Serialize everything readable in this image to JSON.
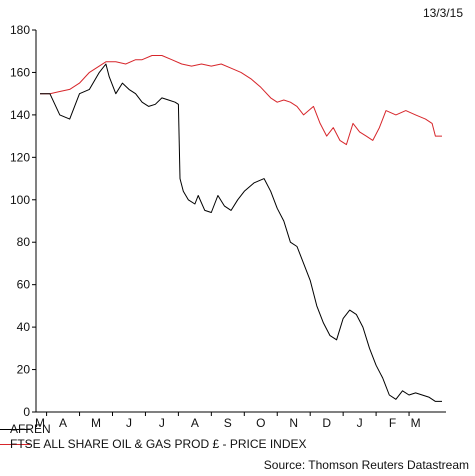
{
  "date": "13/3/15",
  "source": "Source: Thomson Reuters Datastream",
  "chart_data": {
    "type": "line",
    "title": "",
    "xlabel": "",
    "ylabel": "",
    "ylim": [
      0,
      180
    ],
    "yticks": [
      0,
      20,
      40,
      60,
      80,
      100,
      120,
      140,
      160,
      180
    ],
    "x_tick_labels": [
      "M",
      "A",
      "M",
      "J",
      "J",
      "A",
      "S",
      "O",
      "N",
      "D",
      "J",
      "F",
      "M"
    ],
    "x_tick_positions": [
      0,
      0.7,
      1.7,
      2.7,
      3.7,
      4.7,
      5.7,
      6.7,
      7.7,
      8.7,
      9.7,
      10.7,
      11.4
    ],
    "grid": false,
    "legend_position": "bottom-left",
    "x_range": [
      0,
      12.2
    ],
    "series": [
      {
        "name": "AFREN",
        "color": "#000000",
        "points": [
          [
            0.0,
            150
          ],
          [
            0.3,
            150
          ],
          [
            0.6,
            140
          ],
          [
            0.9,
            138
          ],
          [
            1.2,
            150
          ],
          [
            1.5,
            152
          ],
          [
            1.8,
            160
          ],
          [
            2.0,
            164
          ],
          [
            2.1,
            158
          ],
          [
            2.3,
            150
          ],
          [
            2.5,
            155
          ],
          [
            2.7,
            152
          ],
          [
            2.9,
            150
          ],
          [
            3.1,
            146
          ],
          [
            3.3,
            144
          ],
          [
            3.5,
            145
          ],
          [
            3.7,
            148
          ],
          [
            3.9,
            147
          ],
          [
            4.1,
            146
          ],
          [
            4.2,
            145
          ],
          [
            4.25,
            110
          ],
          [
            4.35,
            104
          ],
          [
            4.5,
            100
          ],
          [
            4.7,
            98
          ],
          [
            4.8,
            102
          ],
          [
            5.0,
            95
          ],
          [
            5.2,
            94
          ],
          [
            5.4,
            102
          ],
          [
            5.6,
            97
          ],
          [
            5.8,
            95
          ],
          [
            6.0,
            100
          ],
          [
            6.2,
            104
          ],
          [
            6.5,
            108
          ],
          [
            6.8,
            110
          ],
          [
            7.0,
            104
          ],
          [
            7.2,
            96
          ],
          [
            7.4,
            90
          ],
          [
            7.6,
            80
          ],
          [
            7.8,
            78
          ],
          [
            8.0,
            70
          ],
          [
            8.2,
            62
          ],
          [
            8.4,
            50
          ],
          [
            8.6,
            42
          ],
          [
            8.8,
            36
          ],
          [
            9.0,
            34
          ],
          [
            9.2,
            44
          ],
          [
            9.4,
            48
          ],
          [
            9.6,
            46
          ],
          [
            9.8,
            40
          ],
          [
            10.0,
            30
          ],
          [
            10.2,
            22
          ],
          [
            10.4,
            16
          ],
          [
            10.6,
            8
          ],
          [
            10.8,
            6
          ],
          [
            11.0,
            10
          ],
          [
            11.2,
            8
          ],
          [
            11.4,
            9
          ],
          [
            11.6,
            8
          ],
          [
            11.8,
            7
          ],
          [
            12.0,
            5
          ],
          [
            12.2,
            5
          ]
        ]
      },
      {
        "name": "FTSE ALL SHARE OIL & GAS PROD £ - PRICE INDEX",
        "color": "#d7262b",
        "points": [
          [
            0.0,
            150
          ],
          [
            0.3,
            150
          ],
          [
            0.6,
            151
          ],
          [
            0.9,
            152
          ],
          [
            1.2,
            155
          ],
          [
            1.5,
            160
          ],
          [
            1.8,
            163
          ],
          [
            2.0,
            165
          ],
          [
            2.3,
            165
          ],
          [
            2.6,
            164
          ],
          [
            2.9,
            166
          ],
          [
            3.1,
            166
          ],
          [
            3.4,
            168
          ],
          [
            3.7,
            168
          ],
          [
            4.0,
            166
          ],
          [
            4.3,
            164
          ],
          [
            4.6,
            163
          ],
          [
            4.9,
            164
          ],
          [
            5.2,
            163
          ],
          [
            5.5,
            164
          ],
          [
            5.8,
            162
          ],
          [
            6.1,
            160
          ],
          [
            6.4,
            157
          ],
          [
            6.7,
            153
          ],
          [
            7.0,
            148
          ],
          [
            7.2,
            146
          ],
          [
            7.4,
            147
          ],
          [
            7.6,
            146
          ],
          [
            7.8,
            144
          ],
          [
            8.0,
            140
          ],
          [
            8.3,
            144
          ],
          [
            8.5,
            136
          ],
          [
            8.7,
            130
          ],
          [
            8.9,
            134
          ],
          [
            9.1,
            128
          ],
          [
            9.3,
            126
          ],
          [
            9.5,
            136
          ],
          [
            9.7,
            132
          ],
          [
            9.9,
            130
          ],
          [
            10.1,
            128
          ],
          [
            10.3,
            134
          ],
          [
            10.5,
            142
          ],
          [
            10.8,
            140
          ],
          [
            11.1,
            142
          ],
          [
            11.4,
            140
          ],
          [
            11.7,
            138
          ],
          [
            11.9,
            136
          ],
          [
            12.0,
            130
          ],
          [
            12.2,
            130
          ]
        ]
      }
    ]
  }
}
